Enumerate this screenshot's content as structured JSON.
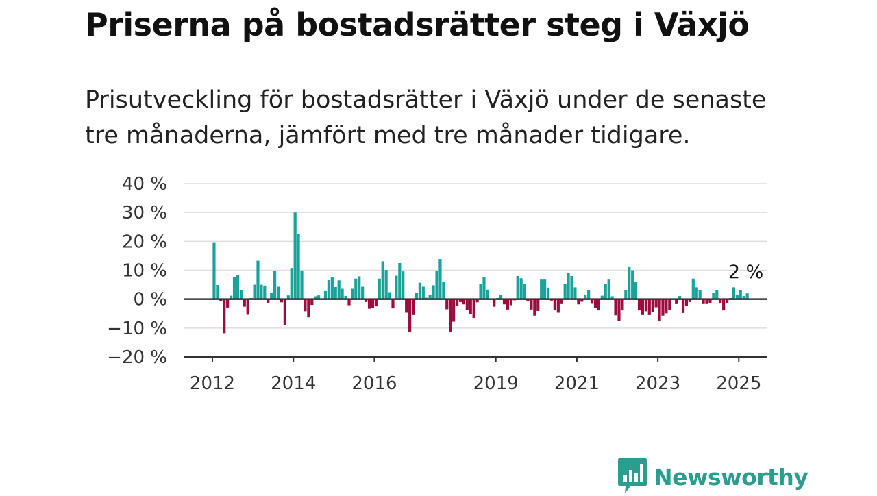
{
  "title": "Priserna på bostadsrätter steg i Växjö",
  "subtitle": "Prisutveckling för bostadsrätter i Växjö under de senaste tre månaderna, jämfört med tre månader tidigare.",
  "logo": {
    "text": "Newsworthy",
    "icon": "bar-chart-speech-bubble-icon"
  },
  "colors": {
    "positive": "#1aa39a",
    "negative": "#9c0d3f",
    "grid": "#dddddd",
    "axis": "#333333"
  },
  "chart_data": {
    "type": "bar",
    "title": "",
    "xlabel": "",
    "ylabel": "",
    "x_start": "2012-01",
    "frequency": "monthly",
    "ylim": [
      -20,
      40
    ],
    "yticks": [
      40,
      30,
      20,
      10,
      0,
      -10,
      -20
    ],
    "ytick_labels": [
      "40 %",
      "30 %",
      "20 %",
      "10 %",
      "0 %",
      "−10 %",
      "−20 %"
    ],
    "xticks": [
      "2012",
      "2014",
      "2016",
      "2019",
      "2021",
      "2023",
      "2025"
    ],
    "grid": true,
    "series": [
      {
        "values": [
          19.7,
          4.9,
          -0.8,
          -11.8,
          -2.9,
          1.2,
          7.5,
          8.3,
          3.2,
          -2.6,
          -5.4,
          0.4,
          5.0,
          13.3,
          5.0,
          4.7,
          -1.5,
          2.2,
          9.7,
          4.3,
          -1.1,
          -8.9,
          1.3,
          10.8,
          30.0,
          22.6,
          9.9,
          -4.2,
          -6.3,
          -2.0,
          1.0,
          1.3,
          0.3,
          2.8,
          6.6,
          7.5,
          4.2,
          6.5,
          3.6,
          1.1,
          -2.1,
          3.6,
          7.1,
          7.9,
          4.3,
          -1.0,
          -3.3,
          -3.0,
          -2.5,
          7.1,
          13.1,
          10.1,
          2.4,
          -3.2,
          8.1,
          12.5,
          9.6,
          -4.7,
          -11.4,
          -5.5,
          2.3,
          5.7,
          4.3,
          0.5,
          1.5,
          4.8,
          9.7,
          13.9,
          6.1,
          -3.5,
          -11.3,
          -7.8,
          -2.2,
          -1.0,
          -1.8,
          -3.8,
          -5.1,
          -6.5,
          -1.1,
          5.3,
          7.5,
          3.3,
          0.2,
          -2.6,
          0.4,
          1.4,
          -1.8,
          -3.6,
          -2.1,
          -0.4,
          8.0,
          7.2,
          5.2,
          -0.8,
          -3.6,
          -5.7,
          -4.1,
          7.0,
          7.0,
          4.0,
          -0.5,
          -3.9,
          -4.7,
          -1.7,
          5.3,
          9.0,
          8.0,
          4.1,
          -1.8,
          -0.9,
          1.6,
          3.0,
          -1.6,
          -3.1,
          -3.9,
          1.2,
          5.2,
          7.0,
          1.0,
          -5.6,
          -7.5,
          -3.9,
          3.0,
          11.1,
          10.0,
          6.1,
          -3.9,
          -5.5,
          -4.2,
          -5.5,
          -4.4,
          -2.8,
          -7.6,
          -5.7,
          -4.9,
          -3.7,
          0.3,
          -1.7,
          1.1,
          -4.8,
          -2.3,
          -1.0,
          7.1,
          4.1,
          3.0,
          -1.7,
          -1.7,
          -1.3,
          2.1,
          3.0,
          -1.3,
          -3.9,
          -1.5,
          0.4,
          4.1,
          1.6,
          3.0,
          1.1,
          2.0
        ]
      }
    ],
    "annotations": [
      {
        "text": "2 %",
        "value": 2.0
      }
    ]
  }
}
